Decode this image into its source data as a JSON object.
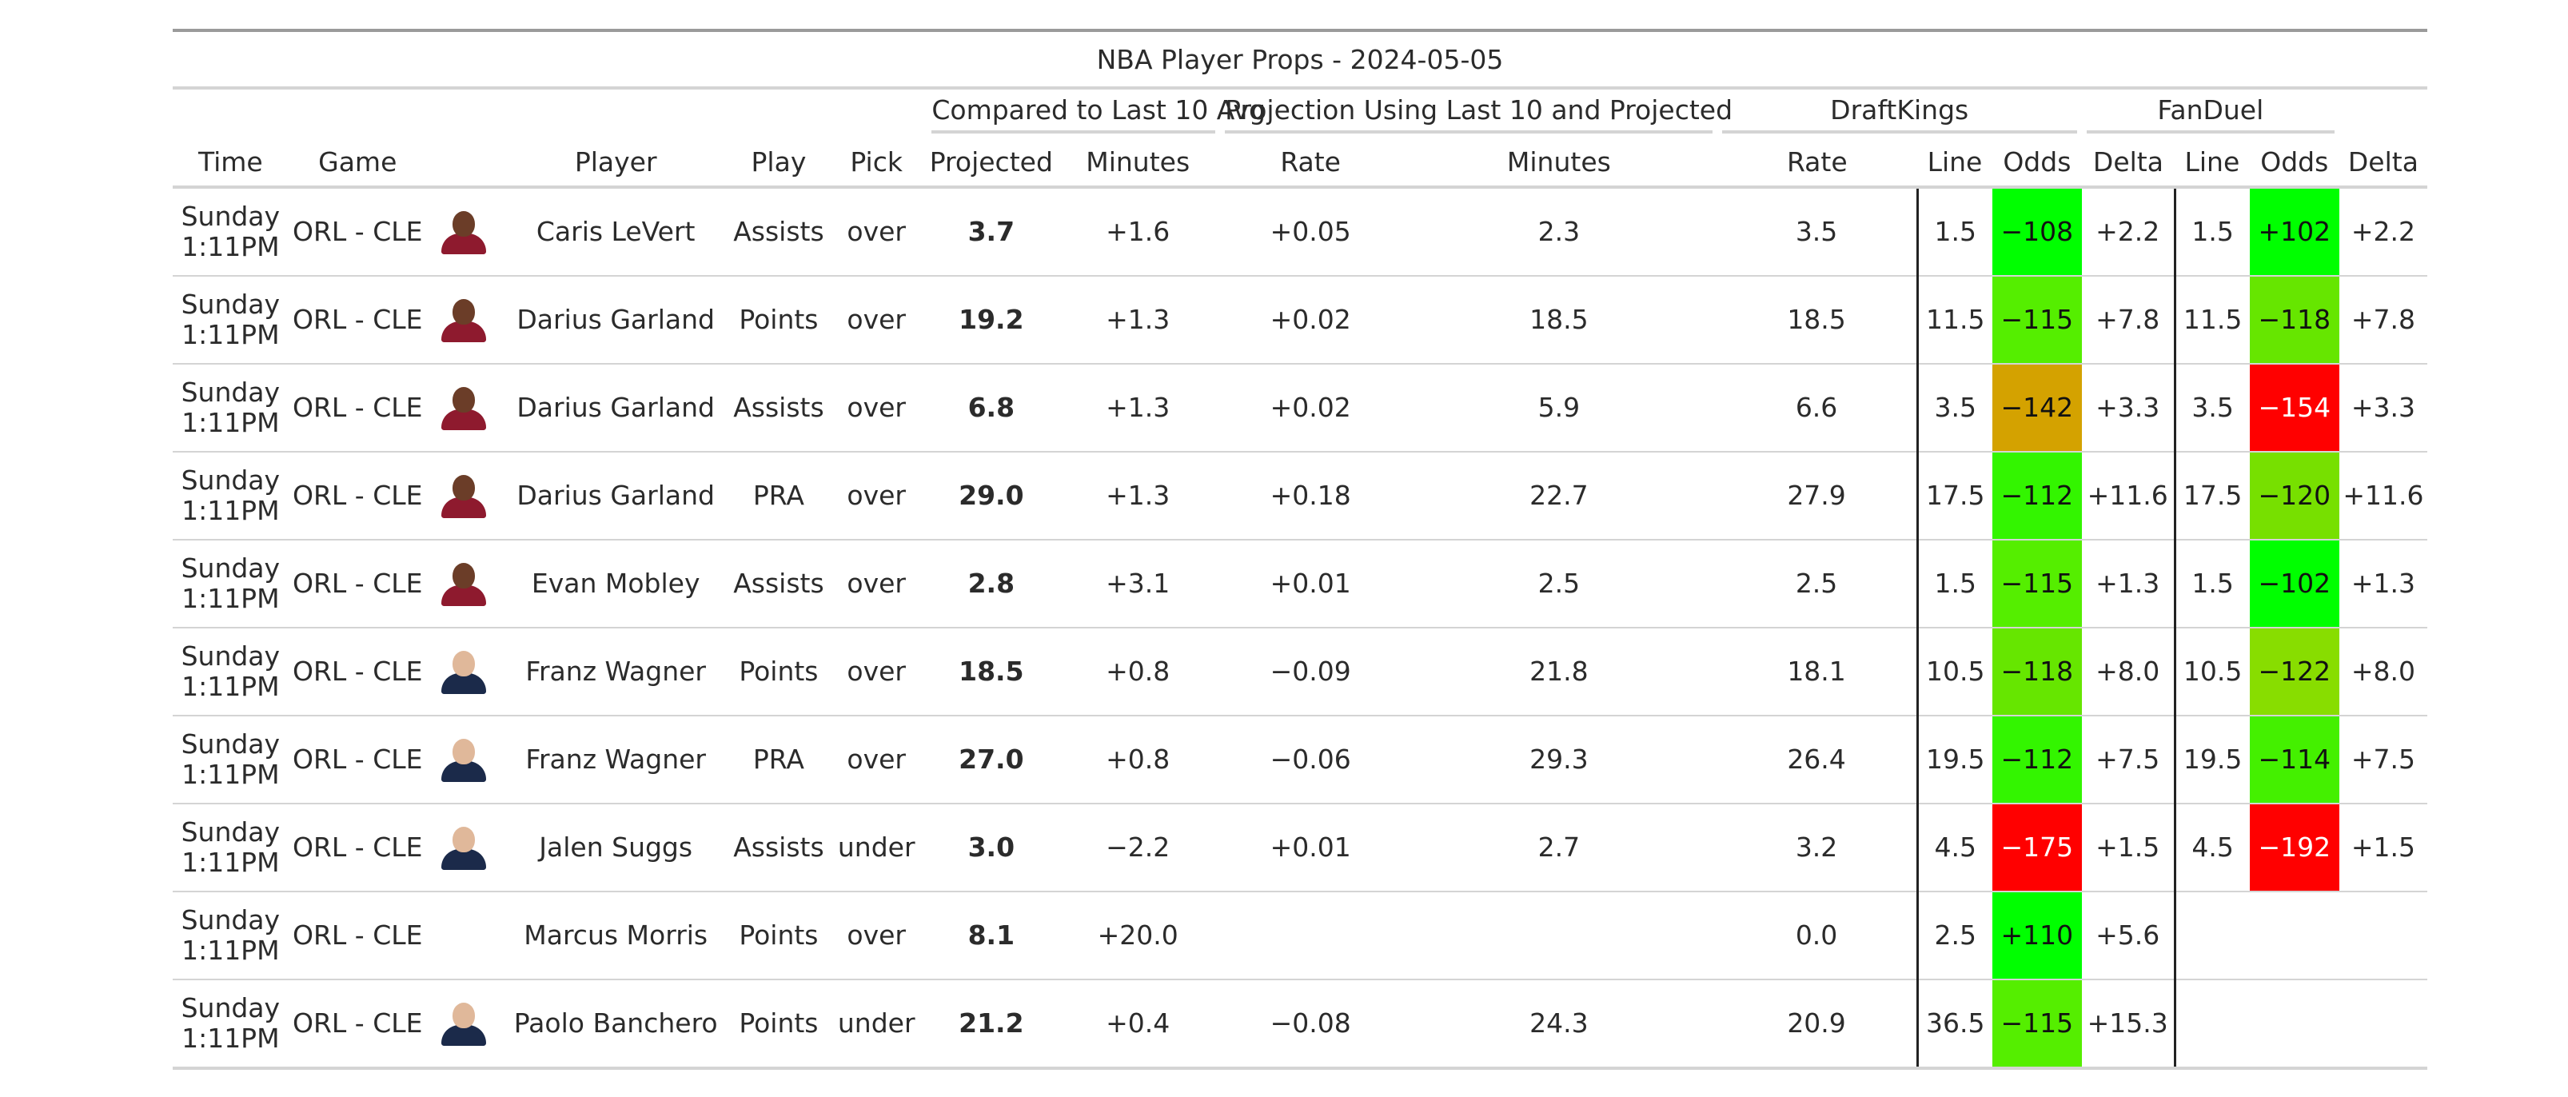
{
  "title": "NBA Player Props - 2024-05-05",
  "group_headers": {
    "last10": "Compared to Last 10 Avg",
    "projection": "Projection Using Last 10 and Projected",
    "draftkings": "DraftKings",
    "fanduel": "FanDuel"
  },
  "columns": {
    "time": "Time",
    "game": "Game",
    "player": "Player",
    "play": "Play",
    "pick": "Pick",
    "projected": "Projected",
    "cmp_minutes": "Minutes",
    "cmp_rate": "Rate",
    "proj_minutes": "Minutes",
    "proj_rate": "Rate",
    "dk_line": "Line",
    "dk_odds": "Odds",
    "dk_delta": "Delta",
    "fd_line": "Line",
    "fd_odds": "Odds",
    "fd_delta": "Delta"
  },
  "rows": [
    {
      "day": "Sunday",
      "time": "1:11PM",
      "game": "ORL - CLE",
      "avatar": "cavaliers-player-photo",
      "player": "Caris LeVert",
      "play": "Assists",
      "pick": "over",
      "projected": "3.7",
      "cmp_minutes": "+1.6",
      "cmp_rate": "+0.05",
      "proj_minutes": "2.3",
      "proj_rate": "3.5",
      "dk_line": "1.5",
      "dk_odds": "−108",
      "dk_odds_color": "#00ff00",
      "dk_delta": "+2.2",
      "fd_line": "1.5",
      "fd_odds": "+102",
      "fd_odds_color": "#00ff00",
      "fd_delta": "+2.2"
    },
    {
      "day": "Sunday",
      "time": "1:11PM",
      "game": "ORL - CLE",
      "avatar": "cavaliers-player-photo",
      "player": "Darius Garland",
      "play": "Points",
      "pick": "over",
      "projected": "19.2",
      "cmp_minutes": "+1.3",
      "cmp_rate": "+0.02",
      "proj_minutes": "18.5",
      "proj_rate": "18.5",
      "dk_line": "11.5",
      "dk_odds": "−115",
      "dk_odds_color": "#55ee00",
      "dk_delta": "+7.8",
      "fd_line": "11.5",
      "fd_odds": "−118",
      "fd_odds_color": "#66e600",
      "fd_delta": "+7.8"
    },
    {
      "day": "Sunday",
      "time": "1:11PM",
      "game": "ORL - CLE",
      "avatar": "cavaliers-player-photo",
      "player": "Darius Garland",
      "play": "Assists",
      "pick": "over",
      "projected": "6.8",
      "cmp_minutes": "+1.3",
      "cmp_rate": "+0.02",
      "proj_minutes": "5.9",
      "proj_rate": "6.6",
      "dk_line": "3.5",
      "dk_odds": "−142",
      "dk_odds_color": "#d4a200",
      "dk_delta": "+3.3",
      "fd_line": "3.5",
      "fd_odds": "−154",
      "fd_odds_color": "#ff0000",
      "fd_delta": "+3.3"
    },
    {
      "day": "Sunday",
      "time": "1:11PM",
      "game": "ORL - CLE",
      "avatar": "cavaliers-player-photo",
      "player": "Darius Garland",
      "play": "PRA",
      "pick": "over",
      "projected": "29.0",
      "cmp_minutes": "+1.3",
      "cmp_rate": "+0.18",
      "proj_minutes": "22.7",
      "proj_rate": "27.9",
      "dk_line": "17.5",
      "dk_odds": "−112",
      "dk_odds_color": "#33f500",
      "dk_delta": "+11.6",
      "fd_line": "17.5",
      "fd_odds": "−120",
      "fd_odds_color": "#77e000",
      "fd_delta": "+11.6"
    },
    {
      "day": "Sunday",
      "time": "1:11PM",
      "game": "ORL - CLE",
      "avatar": "cavaliers-player-photo",
      "player": "Evan Mobley",
      "play": "Assists",
      "pick": "over",
      "projected": "2.8",
      "cmp_minutes": "+3.1",
      "cmp_rate": "+0.01",
      "proj_minutes": "2.5",
      "proj_rate": "2.5",
      "dk_line": "1.5",
      "dk_odds": "−115",
      "dk_odds_color": "#55ee00",
      "dk_delta": "+1.3",
      "fd_line": "1.5",
      "fd_odds": "−102",
      "fd_odds_color": "#00ff00",
      "fd_delta": "+1.3"
    },
    {
      "day": "Sunday",
      "time": "1:11PM",
      "game": "ORL - CLE",
      "avatar": "magic-player-photo",
      "player": "Franz Wagner",
      "play": "Points",
      "pick": "over",
      "projected": "18.5",
      "cmp_minutes": "+0.8",
      "cmp_rate": "−0.09",
      "proj_minutes": "21.8",
      "proj_rate": "18.1",
      "dk_line": "10.5",
      "dk_odds": "−118",
      "dk_odds_color": "#66e600",
      "dk_delta": "+8.0",
      "fd_line": "10.5",
      "fd_odds": "−122",
      "fd_odds_color": "#88dd00",
      "fd_delta": "+8.0"
    },
    {
      "day": "Sunday",
      "time": "1:11PM",
      "game": "ORL - CLE",
      "avatar": "magic-player-photo",
      "player": "Franz Wagner",
      "play": "PRA",
      "pick": "over",
      "projected": "27.0",
      "cmp_minutes": "+0.8",
      "cmp_rate": "−0.06",
      "proj_minutes": "29.3",
      "proj_rate": "26.4",
      "dk_line": "19.5",
      "dk_odds": "−112",
      "dk_odds_color": "#33f500",
      "dk_delta": "+7.5",
      "fd_line": "19.5",
      "fd_odds": "−114",
      "fd_odds_color": "#44f000",
      "fd_delta": "+7.5"
    },
    {
      "day": "Sunday",
      "time": "1:11PM",
      "game": "ORL - CLE",
      "avatar": "magic-player-photo",
      "player": "Jalen Suggs",
      "play": "Assists",
      "pick": "under",
      "projected": "3.0",
      "cmp_minutes": "−2.2",
      "cmp_rate": "+0.01",
      "proj_minutes": "2.7",
      "proj_rate": "3.2",
      "dk_line": "4.5",
      "dk_odds": "−175",
      "dk_odds_color": "#ff0000",
      "dk_delta": "+1.5",
      "fd_line": "4.5",
      "fd_odds": "−192",
      "fd_odds_color": "#ff0000",
      "fd_delta": "+1.5"
    },
    {
      "day": "Sunday",
      "time": "1:11PM",
      "game": "ORL - CLE",
      "avatar": "",
      "player": "Marcus Morris",
      "play": "Points",
      "pick": "over",
      "projected": "8.1",
      "cmp_minutes": "+20.0",
      "cmp_rate": "",
      "proj_minutes": "",
      "proj_rate": "0.0",
      "dk_line": "2.5",
      "dk_odds": "+110",
      "dk_odds_color": "#00ff00",
      "dk_delta": "+5.6",
      "fd_line": "",
      "fd_odds": "",
      "fd_odds_color": "",
      "fd_delta": ""
    },
    {
      "day": "Sunday",
      "time": "1:11PM",
      "game": "ORL - CLE",
      "avatar": "magic-player-photo",
      "player": "Paolo Banchero",
      "play": "Points",
      "pick": "under",
      "projected": "21.2",
      "cmp_minutes": "+0.4",
      "cmp_rate": "−0.08",
      "proj_minutes": "24.3",
      "proj_rate": "20.9",
      "dk_line": "36.5",
      "dk_odds": "−115",
      "dk_odds_color": "#55ee00",
      "dk_delta": "+15.3",
      "fd_line": "",
      "fd_odds": "",
      "fd_odds_color": "",
      "fd_delta": ""
    }
  ],
  "avatar_colors": {
    "cavaliers-player-photo": {
      "skin": "#6b3d28",
      "jersey": "#8e1a2e"
    },
    "magic-player-photo": {
      "skin": "#e0b89a",
      "jersey": "#1b2a4a"
    }
  },
  "hot_odds_colors": [
    "#ff0000"
  ]
}
